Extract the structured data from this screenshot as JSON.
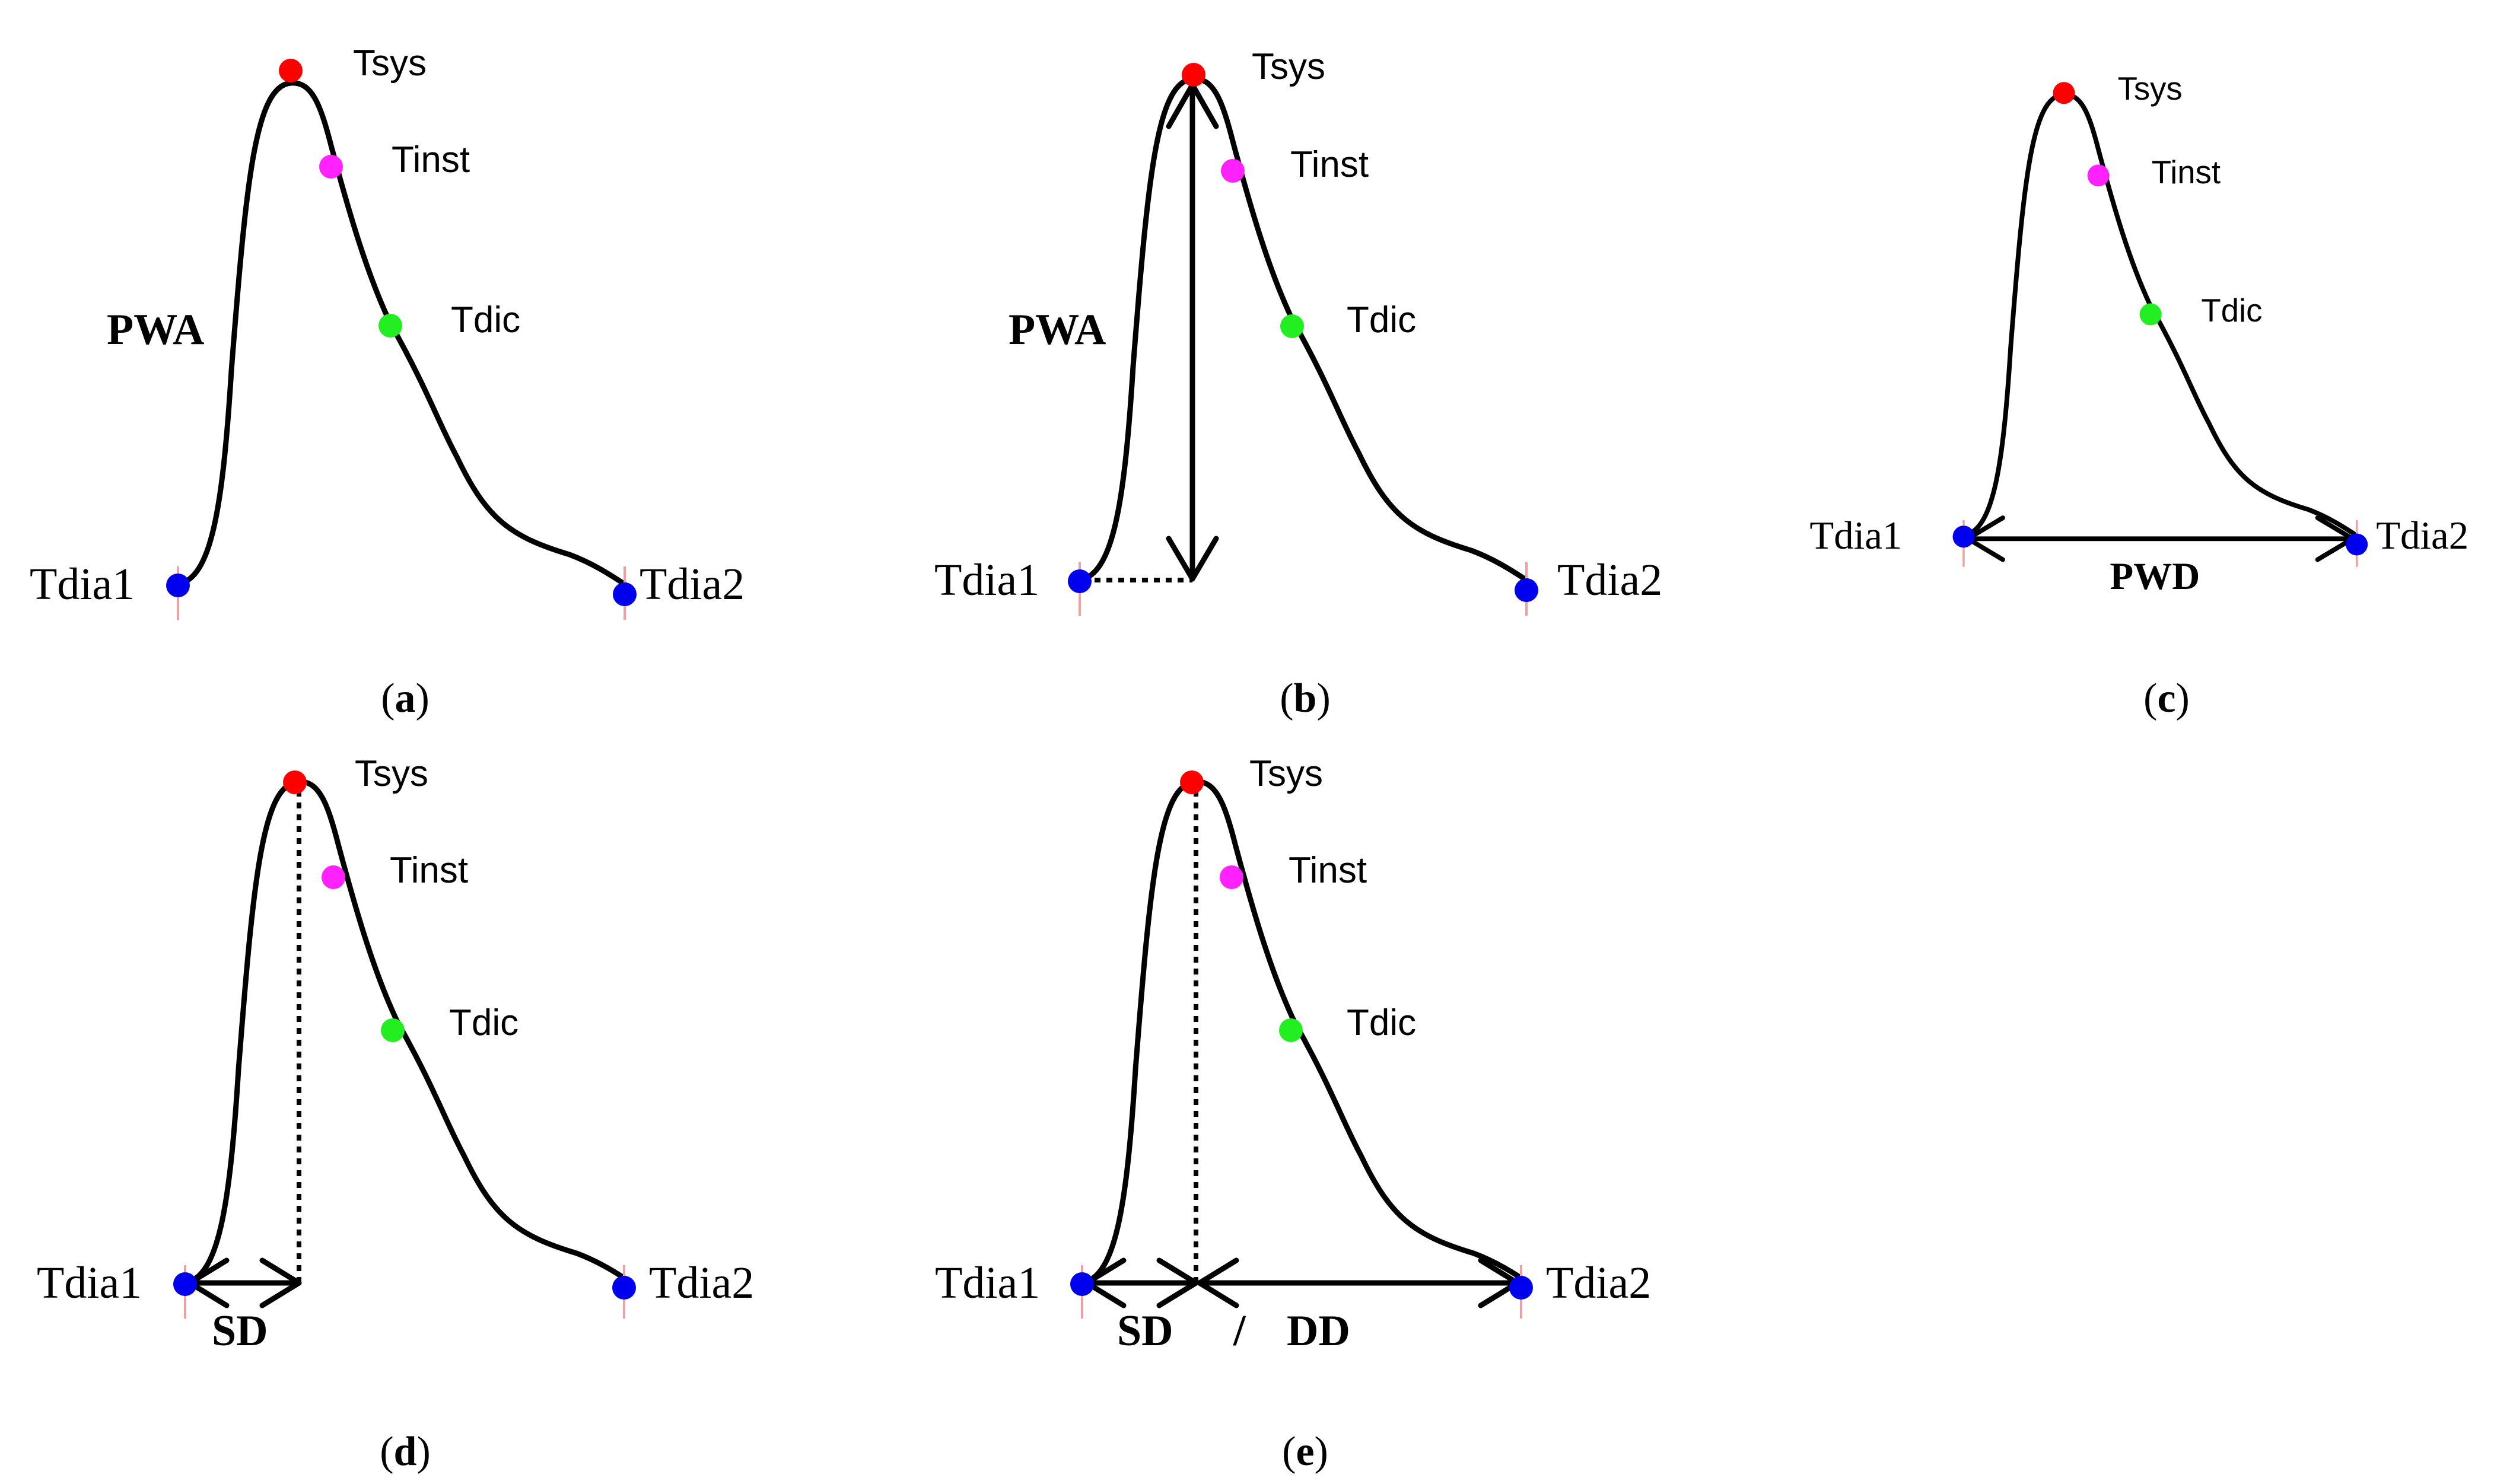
{
  "points": {
    "sys": {
      "label": "Tsys",
      "color": "#ff0000"
    },
    "inst": {
      "label": "Tinst",
      "color": "#ff22ff"
    },
    "dic": {
      "label": "Tdic",
      "color": "#22ee22"
    },
    "dia1": {
      "label": "Tdia1",
      "color": "#0000ee"
    },
    "dia2": {
      "label": "Tdia2",
      "color": "#0000ee"
    }
  },
  "panels": [
    {
      "id": "a",
      "caption_open": "(",
      "caption_letter": "a",
      "caption_close": ")",
      "measure_labels": [
        "PWA"
      ]
    },
    {
      "id": "b",
      "caption_open": "(",
      "caption_letter": "b",
      "caption_close": ")",
      "measure_labels": [
        "PWA"
      ]
    },
    {
      "id": "c",
      "caption_open": "(",
      "caption_letter": "c",
      "caption_close": ")",
      "measure_labels": [
        "PWD"
      ]
    },
    {
      "id": "d",
      "caption_open": "(",
      "caption_letter": "d",
      "caption_close": ")",
      "measure_labels": [
        "SD"
      ]
    },
    {
      "id": "e",
      "caption_open": "(",
      "caption_letter": "e",
      "caption_close": ")",
      "measure_labels": [
        "SD",
        "/",
        "DD"
      ]
    }
  ]
}
